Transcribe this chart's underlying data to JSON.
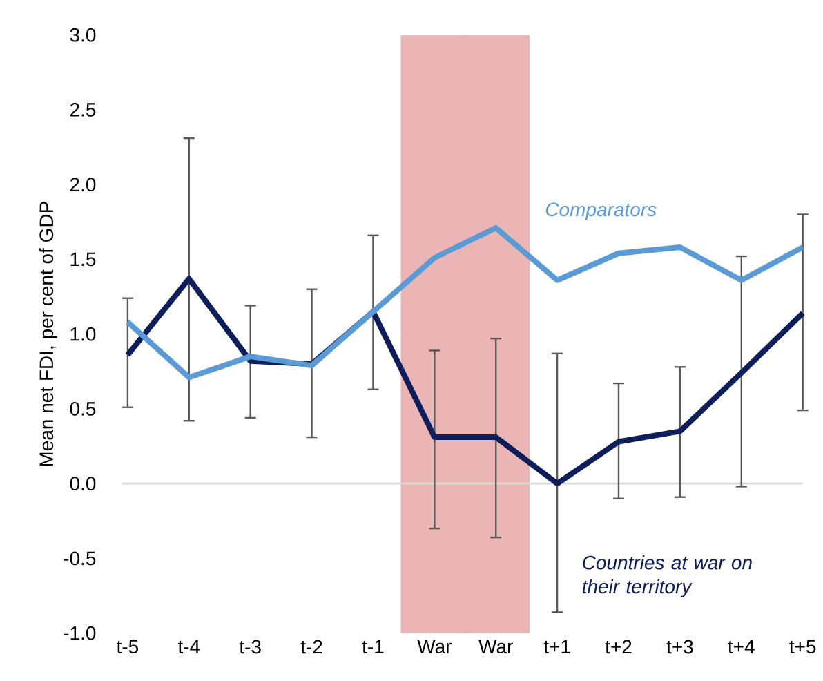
{
  "chart_data": {
    "type": "line",
    "ylabel": "Mean net FDI, per cent of GDP",
    "categories": [
      "t-5",
      "t-4",
      "t-3",
      "t-2",
      "t-1",
      "War",
      "War",
      "t+1",
      "t+2",
      "t+3",
      "t+4",
      "t+5"
    ],
    "series": [
      {
        "name": "Countries at war on their territory",
        "color": "#0d1e5a",
        "values": [
          0.86,
          1.37,
          0.82,
          0.8,
          1.15,
          0.31,
          0.31,
          0.0,
          0.28,
          0.35,
          0.74,
          1.14
        ],
        "errors": [
          [
            0.51,
            1.24
          ],
          [
            0.42,
            2.31
          ],
          [
            0.44,
            1.19
          ],
          [
            0.31,
            1.3
          ],
          [
            0.63,
            1.66
          ],
          [
            -0.3,
            0.89
          ],
          [
            -0.36,
            0.97
          ],
          [
            -0.86,
            0.87
          ],
          [
            -0.1,
            0.67
          ],
          [
            -0.09,
            0.78
          ],
          [
            -0.02,
            1.52
          ],
          [
            0.49,
            1.8
          ]
        ]
      },
      {
        "name": "Comparators",
        "color": "#5b9bd5",
        "values": [
          1.08,
          0.71,
          0.85,
          0.79,
          1.15,
          1.51,
          1.71,
          1.36,
          1.54,
          1.58,
          1.36,
          1.58
        ]
      },
      {
        "type": "bar",
        "color": "#ebb5b5",
        "values": [
          null,
          null,
          null,
          null,
          null,
          4.0,
          4.0,
          null,
          null,
          null,
          null,
          null
        ],
        "base": [
          null,
          null,
          null,
          null,
          null,
          -1.0,
          -1.0,
          null,
          null,
          null,
          null,
          null
        ]
      }
    ],
    "ylim": [
      -1.0,
      3.0
    ],
    "yticks": [
      {
        "value": -1.0,
        "label": "-1.0"
      },
      {
        "value": -0.5,
        "label": "-0.5"
      },
      {
        "value": 0,
        "label": "0.0"
      },
      {
        "value": 0.5,
        "label": "0.5"
      },
      {
        "value": 1.0,
        "label": "1.0"
      },
      {
        "value": 1.5,
        "label": "1.5"
      },
      {
        "value": 2.0,
        "label": "2.0"
      },
      {
        "value": 2.5,
        "label": "2.5"
      },
      {
        "value": 3.0,
        "label": "3.0"
      }
    ],
    "ref_lines": [
      {
        "axis": "y",
        "value": 0,
        "color": "#d9d9d9"
      }
    ],
    "grid": false,
    "legend": false,
    "marker": "none",
    "line_style": "solid"
  }
}
